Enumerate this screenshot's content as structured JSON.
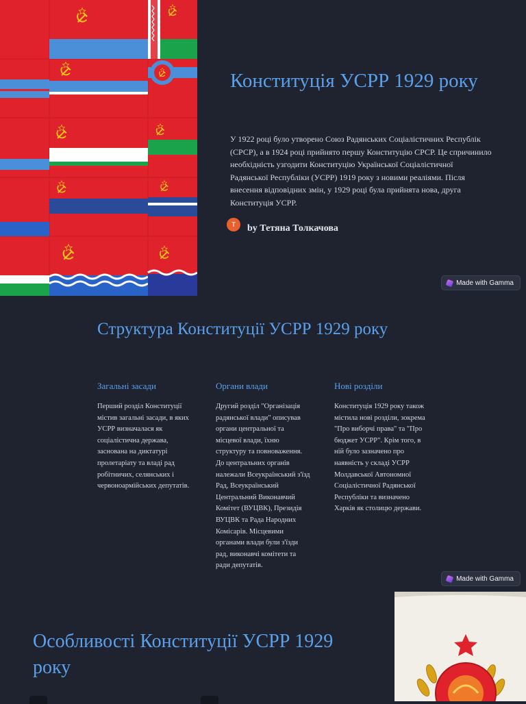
{
  "slide1": {
    "title": "Конституція УСРР 1929 року",
    "intro": "У 1922 році було утворено Союз Радянських Соціалістичних Республік (СРСР), а в 1924 році прийнято першу Конституцію СРСР. Це спричинило необхідність узгодити Конституцію Української Соціалістичної Радянської Республіки (УСРР) 1919 року з новими реаліями. Після внесення відповідних змін, у 1929 році була прийнята нова, друга Конституція УСРР.",
    "author_initial": "Т",
    "author": "by Тетяна Толкачова"
  },
  "badge": {
    "label": "Made with Gamma"
  },
  "slide2": {
    "title": "Структура Конституції УСРР 1929 року",
    "columns": [
      {
        "heading": "Загальні засади",
        "text": "Перший розділ Конституції містив загальні засади, в яких УСРР визначалася як соціалістична держава, заснована на диктатурі пролетаріату та владі рад робітничих, селянських і червоноармійських депутатів."
      },
      {
        "heading": "Органи влади",
        "text": "Другий розділ \"Організація радянської влади\" описував органи центральної та місцевої влади, їхню структуру та повноваження. До центральних органів належали Всеукраїнський з'їзд Рад, Всеукраїнський Центральний Виконавчий Комітет (ВУЦВК), Президія ВУЦВК та Рада Народних Комісарів. Місцевими органами влади були з'їзди рад, виконавчі комітети та ради депутатів."
      },
      {
        "heading": "Нові розділи",
        "text": "Конституція 1929 року також містила нові розділи, зокрема \"Про виборчі права\" та \"Про бюджет УСРР\". Крім того, в ній було зазначено про наявність у складі УСРР Молдавської Автономної Соціалістичної Радянської Республіки та визначено Харків як столицю держави."
      }
    ]
  },
  "slide3": {
    "title": "Особливості Конституції УСРР 1929 року"
  },
  "colors": {
    "accent": "#5aa0ea",
    "background": "#1f2330",
    "flag_red": "#e0222c"
  },
  "icons": {
    "flags": "soviet-republic-flags-image",
    "emblem": "state-emblem-image",
    "hammer_sickle": "hammer-sickle-icon"
  }
}
